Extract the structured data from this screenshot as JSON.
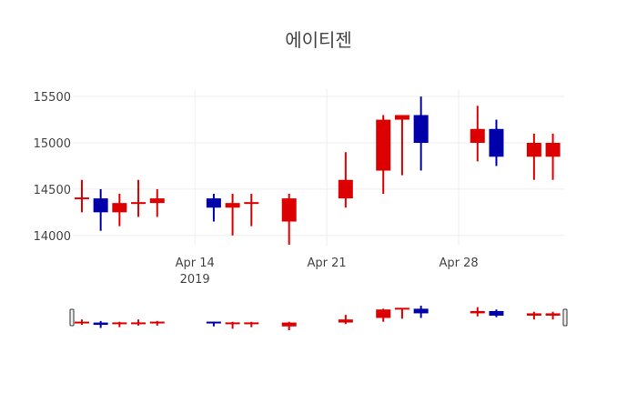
{
  "chart_data": {
    "type": "candlestick",
    "title": "에이티젠",
    "xlabel": "",
    "ylabel": "",
    "yticks": [
      14000,
      14500,
      15000,
      15500
    ],
    "ylim": [
      13890,
      15580
    ],
    "xticks": [
      {
        "day": 6,
        "label": "Apr 14",
        "sub": "2019"
      },
      {
        "day": 13,
        "label": "Apr 21"
      },
      {
        "day": 20,
        "label": "Apr 28"
      }
    ],
    "xlim_days_from_apr8": [
      -0.48,
      25.6
    ],
    "increasing_color": "#dd0000",
    "decreasing_color": "#0000aa",
    "rangeslider": true,
    "candles": [
      {
        "date": "2019-04-08",
        "day": 0,
        "open": 14400,
        "high": 14600,
        "low": 14250,
        "close": 14400
      },
      {
        "date": "2019-04-09",
        "day": 1,
        "open": 14400,
        "high": 14500,
        "low": 14050,
        "close": 14250
      },
      {
        "date": "2019-04-10",
        "day": 2,
        "open": 14250,
        "high": 14450,
        "low": 14100,
        "close": 14350
      },
      {
        "date": "2019-04-11",
        "day": 3,
        "open": 14350,
        "high": 14600,
        "low": 14200,
        "close": 14350
      },
      {
        "date": "2019-04-12",
        "day": 4,
        "open": 14350,
        "high": 14500,
        "low": 14200,
        "close": 14400
      },
      {
        "date": "2019-04-15",
        "day": 7,
        "open": 14400,
        "high": 14450,
        "low": 14150,
        "close": 14300
      },
      {
        "date": "2019-04-16",
        "day": 8,
        "open": 14300,
        "high": 14450,
        "low": 14000,
        "close": 14350
      },
      {
        "date": "2019-04-17",
        "day": 9,
        "open": 14350,
        "high": 14450,
        "low": 14100,
        "close": 14350
      },
      {
        "date": "2019-04-19",
        "day": 11,
        "open": 14150,
        "high": 14450,
        "low": 13900,
        "close": 14400
      },
      {
        "date": "2019-04-22",
        "day": 14,
        "open": 14400,
        "high": 14900,
        "low": 14300,
        "close": 14600
      },
      {
        "date": "2019-04-24",
        "day": 16,
        "open": 14700,
        "high": 15300,
        "low": 14450,
        "close": 15250
      },
      {
        "date": "2019-04-25",
        "day": 17,
        "open": 15250,
        "high": 15300,
        "low": 14650,
        "close": 15300
      },
      {
        "date": "2019-04-26",
        "day": 18,
        "open": 15300,
        "high": 15500,
        "low": 14700,
        "close": 15000
      },
      {
        "date": "2019-04-29",
        "day": 21,
        "open": 15000,
        "high": 15400,
        "low": 14800,
        "close": 15150
      },
      {
        "date": "2019-04-30",
        "day": 22,
        "open": 15150,
        "high": 15250,
        "low": 14750,
        "close": 14850
      },
      {
        "date": "2019-05-02",
        "day": 24,
        "open": 14850,
        "high": 15100,
        "low": 14600,
        "close": 15000
      },
      {
        "date": "2019-05-03",
        "day": 25,
        "open": 14850,
        "high": 15100,
        "low": 14600,
        "close": 15000
      }
    ]
  }
}
